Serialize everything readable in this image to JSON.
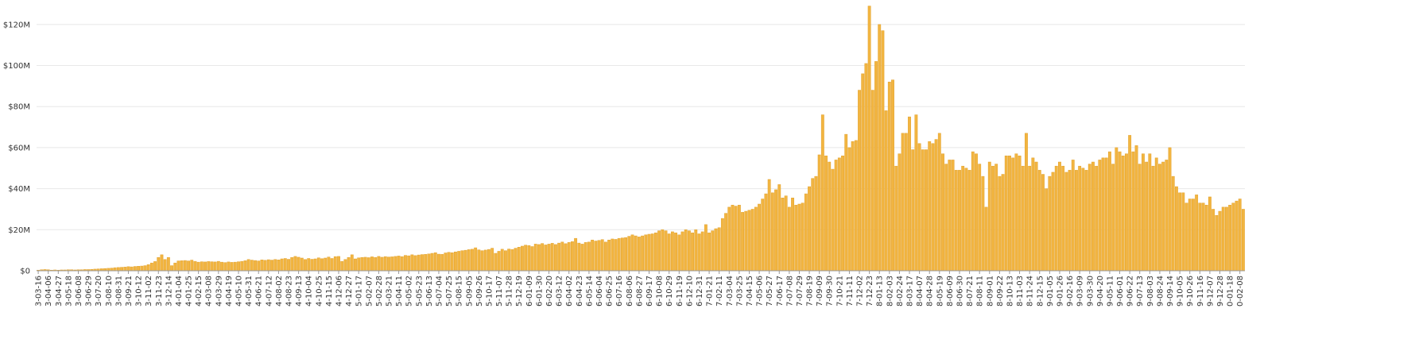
{
  "chart_data": {
    "type": "bar",
    "color": "#f2b541",
    "grid": true,
    "ylim": [
      0,
      130000000
    ],
    "yticks": [
      {
        "value": 0,
        "label": "$0"
      },
      {
        "value": 20000000,
        "label": "$20M"
      },
      {
        "value": 40000000,
        "label": "$40M"
      },
      {
        "value": 60000000,
        "label": "$60M"
      },
      {
        "value": 80000000,
        "label": "$80M"
      },
      {
        "value": 100000000,
        "label": "$100M"
      },
      {
        "value": 120000000,
        "label": "$120M"
      }
    ],
    "categories": [
      "3-03-16",
      null,
      null,
      "3-04-06",
      null,
      null,
      "3-04-27",
      null,
      null,
      "3-05-18",
      null,
      null,
      "3-06-08",
      null,
      null,
      "3-06-29",
      null,
      null,
      "3-07-20",
      null,
      null,
      "3-08-10",
      null,
      null,
      "3-08-31",
      null,
      null,
      "3-09-21",
      null,
      null,
      "3-10-12",
      null,
      null,
      "3-11-02",
      null,
      null,
      "3-11-23",
      null,
      null,
      "3-12-14",
      null,
      null,
      "4-01-04",
      null,
      null,
      "4-01-25",
      null,
      null,
      "4-02-15",
      null,
      null,
      "4-03-08",
      null,
      null,
      "4-03-29",
      null,
      null,
      "4-04-19",
      null,
      null,
      "4-05-10",
      null,
      null,
      "4-05-31",
      null,
      null,
      "4-06-21",
      null,
      null,
      "4-07-12",
      null,
      null,
      "4-08-02",
      null,
      null,
      "4-08-23",
      null,
      null,
      "4-09-13",
      null,
      null,
      "4-10-04",
      null,
      null,
      "4-10-25",
      null,
      null,
      "4-11-15",
      null,
      null,
      "4-12-06",
      null,
      null,
      "4-12-27",
      null,
      null,
      "5-01-17",
      null,
      null,
      "5-02-07",
      null,
      null,
      "5-02-28",
      null,
      null,
      "5-03-21",
      null,
      null,
      "5-04-11",
      null,
      null,
      "5-05-02",
      null,
      null,
      "5-05-23",
      null,
      null,
      "5-06-13",
      null,
      null,
      "5-07-04",
      null,
      null,
      "5-07-25",
      null,
      null,
      "5-08-15",
      null,
      null,
      "5-09-05",
      null,
      null,
      "5-09-26",
      null,
      null,
      "5-10-17",
      null,
      null,
      "5-11-07",
      null,
      null,
      "5-11-28",
      null,
      null,
      "5-12-19",
      null,
      null,
      "6-01-09",
      null,
      null,
      "6-01-30",
      null,
      null,
      "6-02-20",
      null,
      null,
      "6-03-12",
      null,
      null,
      "6-04-02",
      null,
      null,
      "6-04-23",
      null,
      null,
      "6-05-14",
      null,
      null,
      "6-06-04",
      null,
      null,
      "6-06-25",
      null,
      null,
      "6-07-16",
      null,
      null,
      "6-08-06",
      null,
      null,
      "6-08-27",
      null,
      null,
      "6-09-17",
      null,
      null,
      "6-10-08",
      null,
      null,
      "6-10-29",
      null,
      null,
      "6-11-19",
      null,
      null,
      "6-12-10",
      null,
      null,
      "6-12-31",
      null,
      null,
      "7-01-21",
      null,
      null,
      "7-02-11",
      null,
      null,
      "7-03-04",
      null,
      null,
      "7-03-25",
      null,
      null,
      "7-04-15",
      null,
      null,
      "7-05-06",
      null,
      null,
      "7-05-27",
      null,
      null,
      "7-06-17",
      null,
      null,
      "7-07-08",
      null,
      null,
      "7-07-29",
      null,
      null,
      "7-08-19",
      null,
      null,
      "7-09-09",
      null,
      null,
      "7-09-30",
      null,
      null,
      "7-10-21",
      null,
      null,
      "7-11-11",
      null,
      null,
      "7-12-02",
      null,
      null,
      "7-12-23",
      null,
      null,
      "8-01-13",
      null,
      null,
      "8-02-03",
      null,
      null,
      "8-02-24",
      null,
      null,
      "8-03-17",
      null,
      null,
      "8-04-07",
      null,
      null,
      "8-04-28",
      null,
      null,
      "8-05-19",
      null,
      null,
      "8-06-09",
      null,
      null,
      "8-06-30",
      null,
      null,
      "8-07-21",
      null,
      null,
      "8-08-11",
      null,
      null,
      "8-09-01",
      null,
      null,
      "8-09-22",
      null,
      null,
      "8-10-13",
      null,
      null,
      "8-11-03",
      null,
      null,
      "8-11-24",
      null,
      null,
      "8-12-15",
      null,
      null,
      "9-01-05",
      null,
      null,
      "9-01-26",
      null,
      null,
      "9-02-16",
      null,
      null,
      "9-03-09",
      null,
      null,
      "9-03-30",
      null,
      null,
      "9-04-20",
      null,
      null,
      "9-05-11",
      null,
      null,
      "9-06-01",
      null,
      null,
      "9-06-22",
      null,
      null,
      "9-07-13",
      null,
      null,
      "9-08-03",
      null,
      null,
      "9-08-24",
      null,
      null,
      "9-09-14",
      null,
      null,
      "9-10-05",
      null,
      null,
      "9-10-26",
      null,
      null,
      "9-11-16",
      null,
      null,
      "9-12-07",
      null,
      null,
      "9-12-28",
      null,
      null,
      "0-01-18",
      null,
      null,
      "0-02-08",
      null
    ],
    "values": [
      300000.0,
      500000.0,
      600000.0,
      500000.0,
      300000.0,
      400000.0,
      300000.0,
      400000.0,
      400000.0,
      500000.0,
      500000.0,
      400000.0,
      500000.0,
      500000.0,
      600000.0,
      600000.0,
      700000.0,
      800000.0,
      900000.0,
      1000000.0,
      1100000.0,
      1200000.0,
      1300000.0,
      1500000.0,
      1600000.0,
      1700000.0,
      1800000.0,
      2000000.0,
      1900000.0,
      2100000.0,
      2200000.0,
      2300000.0,
      2500000.0,
      3000000.0,
      3800000.0,
      4500000.0,
      6500000.0,
      7800000.0,
      5500000.0,
      6500000.0,
      2500000.0,
      3800000.0,
      4800000.0,
      4900000.0,
      5000000.0,
      4800000.0,
      5200000.0,
      4600000.0,
      4200000.0,
      4400000.0,
      4300000.0,
      4500000.0,
      4400000.0,
      4300000.0,
      4600000.0,
      4200000.0,
      4000000.0,
      4300000.0,
      4100000.0,
      4200000.0,
      4400000.0,
      4600000.0,
      4900000.0,
      5500000.0,
      5200000.0,
      5000000.0,
      4800000.0,
      5300000.0,
      5100000.0,
      5400000.0,
      5200000.0,
      5500000.0,
      5300000.0,
      5800000.0,
      6000000.0,
      5600000.0,
      6500000.0,
      7000000.0,
      6600000.0,
      6200000.0,
      5500000.0,
      6000000.0,
      5600000.0,
      5800000.0,
      6300000.0,
      5900000.0,
      6200000.0,
      6700000.0,
      6000000.0,
      6900000.0,
      7000000.0,
      4600000.0,
      5500000.0,
      6500000.0,
      7800000.0,
      5800000.0,
      6300000.0,
      6500000.0,
      6600000.0,
      6400000.0,
      6800000.0,
      6500000.0,
      7000000.0,
      6600000.0,
      6900000.0,
      6700000.0,
      6800000.0,
      7000000.0,
      7200000.0,
      6900000.0,
      7500000.0,
      7300000.0,
      7800000.0,
      7400000.0,
      7700000.0,
      7900000.0,
      8000000.0,
      8200000.0,
      8500000.0,
      8800000.0,
      8100000.0,
      8000000.0,
      8700000.0,
      9000000.0,
      8800000.0,
      9200000.0,
      9500000.0,
      9800000.0,
      10000000.0,
      10300000.0,
      10500000.0,
      11200000.0,
      10200000.0,
      9800000.0,
      10100000.0,
      10400000.0,
      11000000.0,
      8500000.0,
      9500000.0,
      10500000.0,
      9800000.0,
      10600000.0,
      10400000.0,
      11000000.0,
      11500000.0,
      12000000.0,
      12500000.0,
      12300000.0,
      11800000.0,
      13000000.0,
      12800000.0,
      13300000.0,
      12600000.0,
      13000000.0,
      13400000.0,
      12800000.0,
      13500000.0,
      14000000.0,
      13200000.0,
      13800000.0,
      14200000.0,
      15800000.0,
      13500000.0,
      13000000.0,
      13800000.0,
      14000000.0,
      15000000.0,
      14500000.0,
      14800000.0,
      15200000.0,
      14000000.0,
      15000000.0,
      15500000.0,
      15300000.0,
      15800000.0,
      16000000.0,
      16200000.0,
      16800000.0,
      17500000.0,
      17000000.0,
      16500000.0,
      17000000.0,
      17500000.0,
      17800000.0,
      18000000.0,
      18500000.0,
      19500000.0,
      20000000.0,
      19500000.0,
      18000000.0,
      19000000.0,
      18500000.0,
      17500000.0,
      19000000.0,
      20000000.0,
      19500000.0,
      18500000.0,
      20000000.0,
      18000000.0,
      19000000.0,
      22500000.0,
      18500000.0,
      19500000.0,
      20500000.0,
      21000000.0,
      25500000.0,
      28000000.0,
      31000000.0,
      32000000.0,
      31500000.0,
      32000000.0,
      28500000.0,
      29000000.0,
      29500000.0,
      30000000.0,
      31000000.0,
      32500000.0,
      35000000.0,
      37500000.0,
      44500000.0,
      38000000.0,
      39500000.0,
      42000000.0,
      35500000.0,
      36500000.0,
      31000000.0,
      35500000.0,
      32000000.0,
      32500000.0,
      33000000.0,
      37500000.0,
      41000000.0,
      45000000.0,
      46000000.0,
      56500000.0,
      76000000.0,
      56000000.0,
      53000000.0,
      49500000.0,
      54000000.0,
      55000000.0,
      56000000.0,
      66500000.0,
      60000000.0,
      63000000.0,
      63500000.0,
      88000000.0,
      96000000.0,
      101000000.0,
      129000000.0,
      88000000.0,
      102000000.0,
      120000000.0,
      117000000.0,
      78000000.0,
      92000000.0,
      93000000.0,
      51000000.0,
      57000000.0,
      67000000.0,
      67000000.0,
      75000000.0,
      59000000.0,
      76000000.0,
      62000000.0,
      59000000.0,
      59000000.0,
      63000000.0,
      62000000.0,
      64000000.0,
      67000000.0,
      57000000.0,
      52000000.0,
      54000000.0,
      54000000.0,
      49000000.0,
      49000000.0,
      51000000.0,
      50000000.0,
      49000000.0,
      58000000.0,
      57000000.0,
      52000000.0,
      46000000.0,
      31000000.0,
      53000000.0,
      51000000.0,
      52000000.0,
      46000000.0,
      47000000.0,
      56000000.0,
      56000000.0,
      55000000.0,
      57000000.0,
      56000000.0,
      51000000.0,
      67000000.0,
      51000000.0,
      55000000.0,
      53000000.0,
      49000000.0,
      47000000.0,
      40000000.0,
      46000000.0,
      48000000.0,
      51000000.0,
      53000000.0,
      51000000.0,
      48000000.0,
      49000000.0,
      54000000.0,
      49000000.0,
      51000000.0,
      50000000.0,
      49000000.0,
      52000000.0,
      53000000.0,
      51000000.0,
      54000000.0,
      55000000.0,
      55000000.0,
      58000000.0,
      52000000.0,
      60000000.0,
      58000000.0,
      56000000.0,
      57000000.0,
      66000000.0,
      58000000.0,
      61000000.0,
      52000000.0,
      57000000.0,
      53000000.0,
      57000000.0,
      51000000.0,
      55000000.0,
      52000000.0,
      53000000.0,
      54000000.0,
      60000000.0,
      46000000.0,
      41000000.0,
      38000000.0,
      38000000.0,
      33000000.0,
      35000000.0,
      35000000.0,
      37000000.0,
      33000000.0,
      33000000.0,
      32000000.0,
      36000000.0,
      30000000.0,
      27000000.0,
      29000000.0,
      31000000.0,
      31000000.0,
      32000000.0,
      33000000.0,
      34000000.0,
      35000000.0,
      30000000.0
    ]
  }
}
